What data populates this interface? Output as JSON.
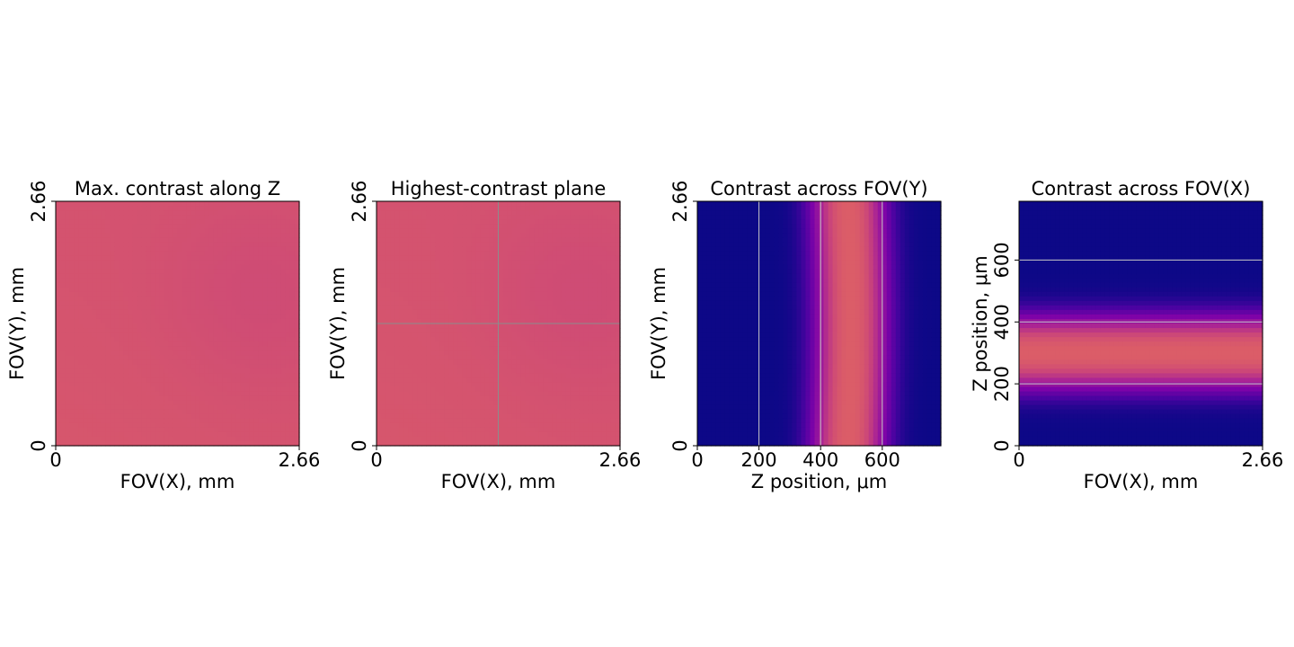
{
  "chart_data": [
    {
      "type": "heatmap",
      "title": "Max. contrast along Z",
      "xlabel": "FOV(X), mm",
      "ylabel": "FOV(Y), mm",
      "xlim": [
        0,
        2.66
      ],
      "ylim": [
        0,
        2.66
      ],
      "xticks": [
        0,
        2.66
      ],
      "yticks": [
        0,
        2.66
      ],
      "xtick_labels": [
        "0",
        "2.66"
      ],
      "ytick_labels": [
        "0",
        "2.66"
      ],
      "colormap": "plasma",
      "field": {
        "kind": "smooth",
        "level": 0.55,
        "variation": 0.05
      }
    },
    {
      "type": "heatmap",
      "title": "Highest-contrast plane",
      "xlabel": "FOV(X), mm",
      "ylabel": "FOV(Y), mm",
      "xlim": [
        0,
        2.66
      ],
      "ylim": [
        0,
        2.66
      ],
      "xticks": [
        0,
        2.66
      ],
      "yticks": [
        0,
        2.66
      ],
      "xtick_labels": [
        "0",
        "2.66"
      ],
      "ytick_labels": [
        "0",
        "2.66"
      ],
      "colormap": "plasma",
      "field": {
        "kind": "smooth",
        "level": 0.55,
        "variation": 0.05
      },
      "crosshair": {
        "x": 1.33,
        "y": 1.33,
        "color": "#8c8c8c"
      }
    },
    {
      "type": "heatmap",
      "title": "Contrast across FOV(Y)",
      "xlabel": "Z position, μm",
      "ylabel": "FOV(Y), mm",
      "xlim": [
        0,
        790
      ],
      "ylim": [
        0,
        2.66
      ],
      "xticks": [
        0,
        200,
        400,
        600
      ],
      "yticks": [
        0,
        2.66
      ],
      "xtick_labels": [
        "0",
        "200",
        "400",
        "600"
      ],
      "ytick_labels": [
        "0",
        "2.66"
      ],
      "colormap": "plasma",
      "field": {
        "kind": "band",
        "axis": "x",
        "center": 490,
        "width": 130,
        "peak": 0.58
      },
      "gridlines": {
        "axis": "x",
        "values": [
          200,
          400,
          600
        ],
        "color": "#c8c8c8"
      }
    },
    {
      "type": "heatmap",
      "title": "Contrast across FOV(X)",
      "xlabel": "FOV(X), mm",
      "ylabel": "Z position, μm",
      "xlim": [
        0,
        2.66
      ],
      "ylim": [
        0,
        790
      ],
      "xticks": [
        0,
        2.66
      ],
      "yticks": [
        0,
        200,
        400,
        600
      ],
      "xtick_labels": [
        "0",
        "2.66"
      ],
      "ytick_labels": [
        "0",
        "200",
        "400",
        "600"
      ],
      "colormap": "plasma",
      "field": {
        "kind": "band",
        "axis": "y",
        "center": 300,
        "width": 130,
        "peak": 0.58
      },
      "gridlines": {
        "axis": "y",
        "values": [
          200,
          400,
          600
        ],
        "color": "#c8c8c8"
      }
    }
  ]
}
